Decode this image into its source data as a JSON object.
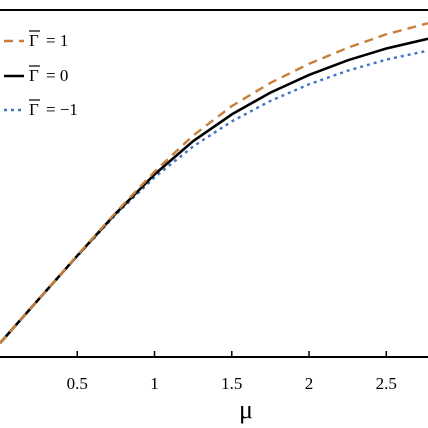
{
  "chart_data": {
    "type": "line",
    "title": "",
    "xlabel": "μ",
    "ylabel": "",
    "xlim": [
      0.0,
      2.77
    ],
    "ylim": [
      0.0,
      1.0
    ],
    "x_ticks": [
      0.5,
      1,
      1.5,
      2,
      2.5
    ],
    "x_tick_labels": [
      "0.5",
      "1",
      "1.5",
      "2",
      "2.5"
    ],
    "grid": false,
    "legend_position": "top-left",
    "series": [
      {
        "name": "Γ̄ = 1",
        "symbol": "Γ",
        "value_text": "= 1",
        "color": "#c87f3a",
        "style": "dashed",
        "x": [
          0.0,
          0.25,
          0.5,
          0.75,
          1.0,
          1.25,
          1.5,
          1.75,
          2.0,
          2.25,
          2.5,
          2.77
        ],
        "y": [
          0.04,
          0.166,
          0.293,
          0.417,
          0.534,
          0.638,
          0.723,
          0.79,
          0.845,
          0.891,
          0.93,
          0.962
        ]
      },
      {
        "name": "Γ̄ = 0",
        "symbol": "Γ",
        "value_text": "= 0",
        "color": "#000000",
        "style": "solid",
        "x": [
          0.0,
          0.25,
          0.5,
          0.75,
          1.0,
          1.25,
          1.5,
          1.75,
          2.0,
          2.25,
          2.5,
          2.77
        ],
        "y": [
          0.04,
          0.166,
          0.292,
          0.414,
          0.526,
          0.622,
          0.699,
          0.762,
          0.813,
          0.855,
          0.889,
          0.917
        ]
      },
      {
        "name": "Γ̄ = −1",
        "symbol": "Γ",
        "value_text": "= −1",
        "color": "#4472c4",
        "style": "dotted",
        "x": [
          0.0,
          0.25,
          0.5,
          0.75,
          1.0,
          1.25,
          1.5,
          1.75,
          2.0,
          2.25,
          2.5,
          2.77
        ],
        "y": [
          0.04,
          0.166,
          0.291,
          0.411,
          0.518,
          0.607,
          0.679,
          0.738,
          0.786,
          0.825,
          0.857,
          0.883
        ]
      }
    ]
  }
}
